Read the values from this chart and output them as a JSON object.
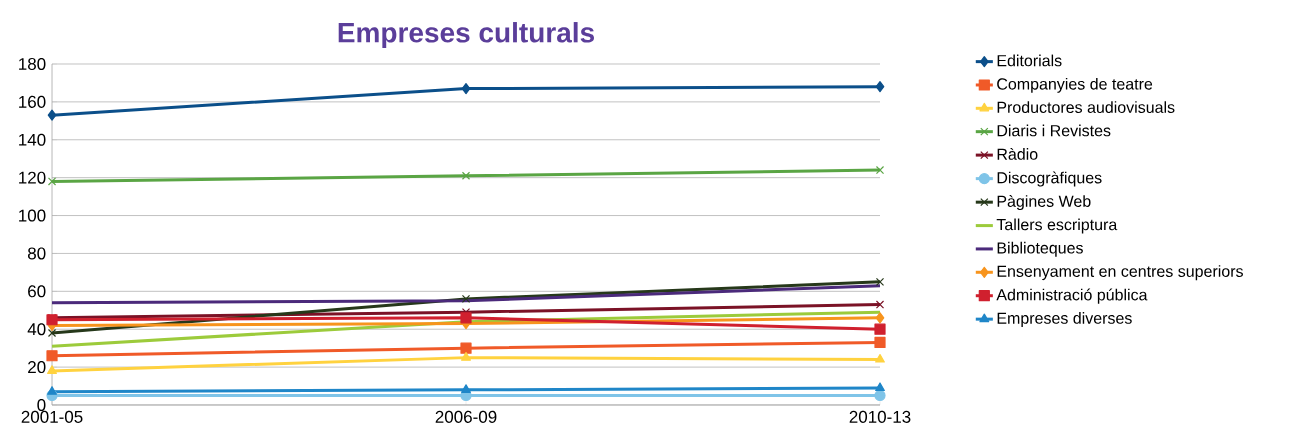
{
  "chart_data": {
    "type": "line",
    "title": "Empreses culturals",
    "categories": [
      "2001-05",
      "2006-09",
      "2010-13"
    ],
    "ylim": [
      0,
      180
    ],
    "yticks": [
      0,
      20,
      40,
      60,
      80,
      100,
      120,
      140,
      160,
      180
    ],
    "grid": "y",
    "legend": "right",
    "line_style": "solid",
    "series": [
      {
        "name": "Editorials",
        "color": "#0b4f8a",
        "marker": "diamond",
        "values": [
          153,
          167,
          168
        ]
      },
      {
        "name": "Companyies de teatre",
        "color": "#f05a28",
        "marker": "square",
        "values": [
          26,
          30,
          33
        ]
      },
      {
        "name": "Productores audiovisuals",
        "color": "#ffd23f",
        "marker": "triangle",
        "values": [
          18,
          25,
          24
        ]
      },
      {
        "name": "Diaris i Revistes",
        "color": "#5aa544",
        "marker": "cross",
        "values": [
          118,
          121,
          124
        ]
      },
      {
        "name": "Ràdio",
        "color": "#7b1226",
        "marker": "cross",
        "values": [
          46,
          49,
          53
        ]
      },
      {
        "name": "Discogràfiques",
        "color": "#7fc4e8",
        "marker": "circle",
        "values": [
          5,
          5,
          5
        ]
      },
      {
        "name": "Pàgines Web",
        "color": "#26381a",
        "marker": "cross",
        "values": [
          38,
          56,
          65
        ]
      },
      {
        "name": "Tallers escriptura",
        "color": "#9ccb3b",
        "marker": "none",
        "values": [
          31,
          44,
          49
        ]
      },
      {
        "name": "Biblioteques",
        "color": "#4b2a7b",
        "marker": "none",
        "values": [
          54,
          55,
          63
        ]
      },
      {
        "name": "Ensenyament en centres superiors",
        "color": "#f7941d",
        "marker": "diamond",
        "values": [
          42,
          43,
          46
        ]
      },
      {
        "name": "Administració pública",
        "color": "#d0202e",
        "marker": "square",
        "values": [
          45,
          46,
          40
        ]
      },
      {
        "name": "Empreses diverses",
        "color": "#1f86c8",
        "marker": "triangle",
        "values": [
          7,
          8,
          9
        ]
      }
    ]
  }
}
